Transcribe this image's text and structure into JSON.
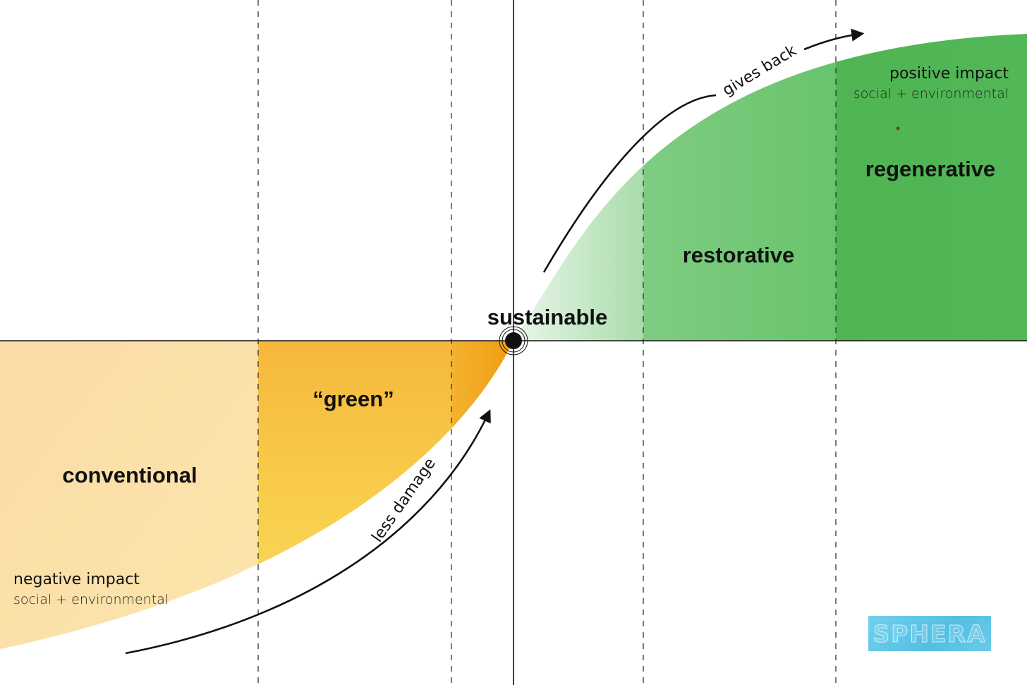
{
  "zones": {
    "conventional": "conventional",
    "green": "“green”",
    "sustainable": "sustainable",
    "restorative": "restorative",
    "regenerative": "regenerative"
  },
  "negative_impact": {
    "title": "negative impact",
    "subtitle": "social + environmental"
  },
  "positive_impact": {
    "title": "positive impact",
    "subtitle": "social + environmental"
  },
  "curve_labels": {
    "lower": "less damage",
    "upper": "gives back"
  },
  "logo": {
    "text": "SPHERA"
  },
  "colors": {
    "orange_light": "#fbe2a9",
    "orange_mid": "#f7c641",
    "orange_dark": "#f2a414",
    "green_light": "#c3e6c4",
    "green_mid": "#6cc46e",
    "green_dark": "#3fae48",
    "logo_bg": "#5ec8e6"
  }
}
